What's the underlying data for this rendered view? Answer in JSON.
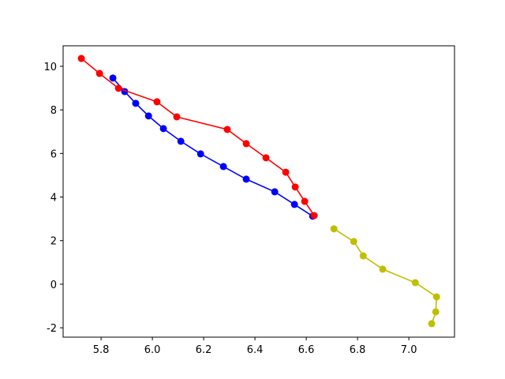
{
  "chart_data": {
    "type": "line",
    "xlim": [
      5.652,
      7.178
    ],
    "ylim": [
      -2.43,
      10.94
    ],
    "xticks": [
      5.8,
      {
        "value": 6,
        "label": "6.0"
      },
      6.2,
      6.4,
      6.6,
      6.8,
      {
        "value": 7,
        "label": "7.0"
      }
    ],
    "yticks": [
      -2,
      0,
      2,
      4,
      6,
      8,
      10
    ],
    "series": [
      {
        "color": "#0000ff",
        "x": [
          5.846,
          5.892,
          5.935,
          5.985,
          6.043,
          6.111,
          6.188,
          6.277,
          6.366,
          6.477,
          6.554,
          6.625
        ],
        "values": [
          9.46,
          8.84,
          8.3,
          7.72,
          7.14,
          6.56,
          5.98,
          5.4,
          4.82,
          4.24,
          3.66,
          3.12
        ]
      },
      {
        "color": "#ff0000",
        "x": [
          5.723,
          5.794,
          5.868,
          6.018,
          6.095,
          6.292,
          6.366,
          6.443,
          6.52,
          6.557,
          6.594,
          6.631
        ],
        "values": [
          10.36,
          9.67,
          8.99,
          8.37,
          7.68,
          7.1,
          6.45,
          5.8,
          5.14,
          4.46,
          3.8,
          3.15
        ]
      },
      {
        "color": "#bfbf00",
        "x": [
          6.708,
          6.785,
          6.822,
          6.898,
          7.025,
          7.108,
          7.105,
          7.089
        ],
        "values": [
          2.54,
          1.96,
          1.3,
          0.69,
          0.07,
          -0.58,
          -1.27,
          -1.81
        ]
      }
    ]
  }
}
